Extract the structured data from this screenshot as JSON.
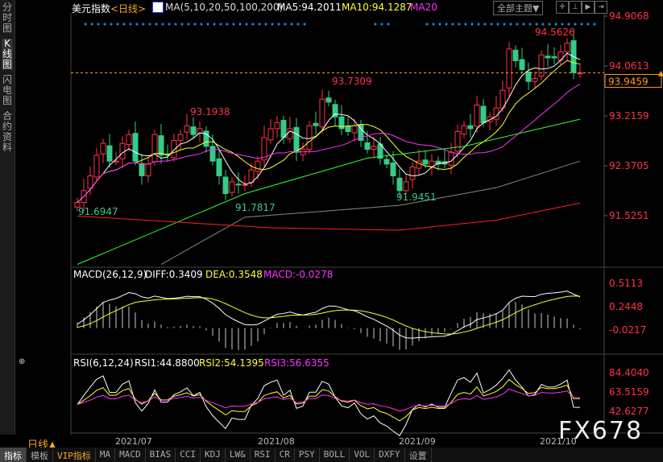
{
  "sidebar": {
    "tabs": [
      {
        "label": "分时图"
      },
      {
        "label": "K线图",
        "active": true
      },
      {
        "label": "闪电图"
      },
      {
        "label": "合约资料"
      }
    ]
  },
  "header": {
    "symbol": "美元指数",
    "period": "<日线>",
    "ma_label": "MA(5,10,20,50,100,200)",
    "ma5": "MA5:94.2011",
    "ma10": "MA10:94.1287",
    "ma20": "MA20",
    "theme_button": "全部主题▼"
  },
  "price_axis": {
    "ticks": [
      "94.9068",
      "94.0613",
      "93.2159",
      "92.3705",
      "91.5251"
    ],
    "current": "93.9459"
  },
  "annotations": {
    "low1": "91.6947",
    "high1": "93.1938",
    "low2": "91.7817",
    "high2": "93.7309",
    "low3": "91.9451",
    "high3": "94.5626"
  },
  "macd": {
    "label": "MACD(26,12,9)",
    "diff": "DIFF:0.3409",
    "dea": "DEA:0.3548",
    "macd": "MACD:-0.0278",
    "ticks": [
      "0.5113",
      "0.2448",
      "-0.0217"
    ]
  },
  "rsi": {
    "label": "RSI(6,12,24)",
    "rsi1": "RSI1:44.8800",
    "rsi2": "RSI2:54.1395",
    "rsi3": "RSI3:56.6355",
    "ticks": [
      "84.4040",
      "63.5159",
      "42.6277"
    ]
  },
  "dates": [
    "2021/07",
    "2021/08",
    "2021/09",
    "2021/10"
  ],
  "period_selector": "日线▲",
  "watermark": "FX678",
  "toolbar": [
    "指标",
    "模板",
    "VIP指标",
    "MA",
    "MACD",
    "BIAS",
    "CCI",
    "KDJ",
    "LW&",
    "RSI",
    "CR",
    "PSY",
    "BOLL",
    "VOL",
    "DXFY",
    "设置"
  ],
  "colors": {
    "up": "#ff3344",
    "down": "#33cc88",
    "ma5": "#ffffff",
    "ma10": "#ffff33",
    "ma20": "#ff33ff",
    "ma50": "#33ff33",
    "ma100": "#888888",
    "ma200": "#ff2222",
    "accent": "#ff9922"
  },
  "chart_data": {
    "type": "candlestick",
    "ylim": [
      91.5251,
      94.9068
    ],
    "closes": [
      91.75,
      91.95,
      92.2,
      92.55,
      92.75,
      92.45,
      92.45,
      92.75,
      92.9,
      92.45,
      92.2,
      92.4,
      92.9,
      92.55,
      92.55,
      92.8,
      92.9,
      93.05,
      92.9,
      93.0,
      92.7,
      92.45,
      92.2,
      91.9,
      92.1,
      92.05,
      92.05,
      92.3,
      92.45,
      92.85,
      93.0,
      93.1,
      92.85,
      93.0,
      92.6,
      92.65,
      93.05,
      93.05,
      93.5,
      93.45,
      93.2,
      93.0,
      92.95,
      93.05,
      92.8,
      92.65,
      92.7,
      92.5,
      92.4,
      92.2,
      91.95,
      92.1,
      92.35,
      92.45,
      92.4,
      92.45,
      92.4,
      92.4,
      92.6,
      92.95,
      93.05,
      93.0,
      93.4,
      93.1,
      93.2,
      93.35,
      93.65,
      94.35,
      94.15,
      94.0,
      93.8,
      93.85,
      94.25,
      94.2,
      94.2,
      94.3,
      94.45,
      93.95,
      93.9459
    ],
    "ma50": [
      [
        0,
        90.7
      ],
      [
        26,
        91.9
      ],
      [
        45,
        92.5
      ],
      [
        60,
        92.7
      ],
      [
        78,
        93.16
      ]
    ],
    "ma100": [
      [
        13,
        90.7
      ],
      [
        26,
        91.5
      ],
      [
        50,
        91.7
      ],
      [
        65,
        92.0
      ],
      [
        78,
        92.45
      ]
    ],
    "ma200": [
      [
        0,
        91.52
      ],
      [
        30,
        91.32
      ],
      [
        50,
        91.28
      ],
      [
        65,
        91.45
      ],
      [
        78,
        91.74
      ]
    ]
  }
}
